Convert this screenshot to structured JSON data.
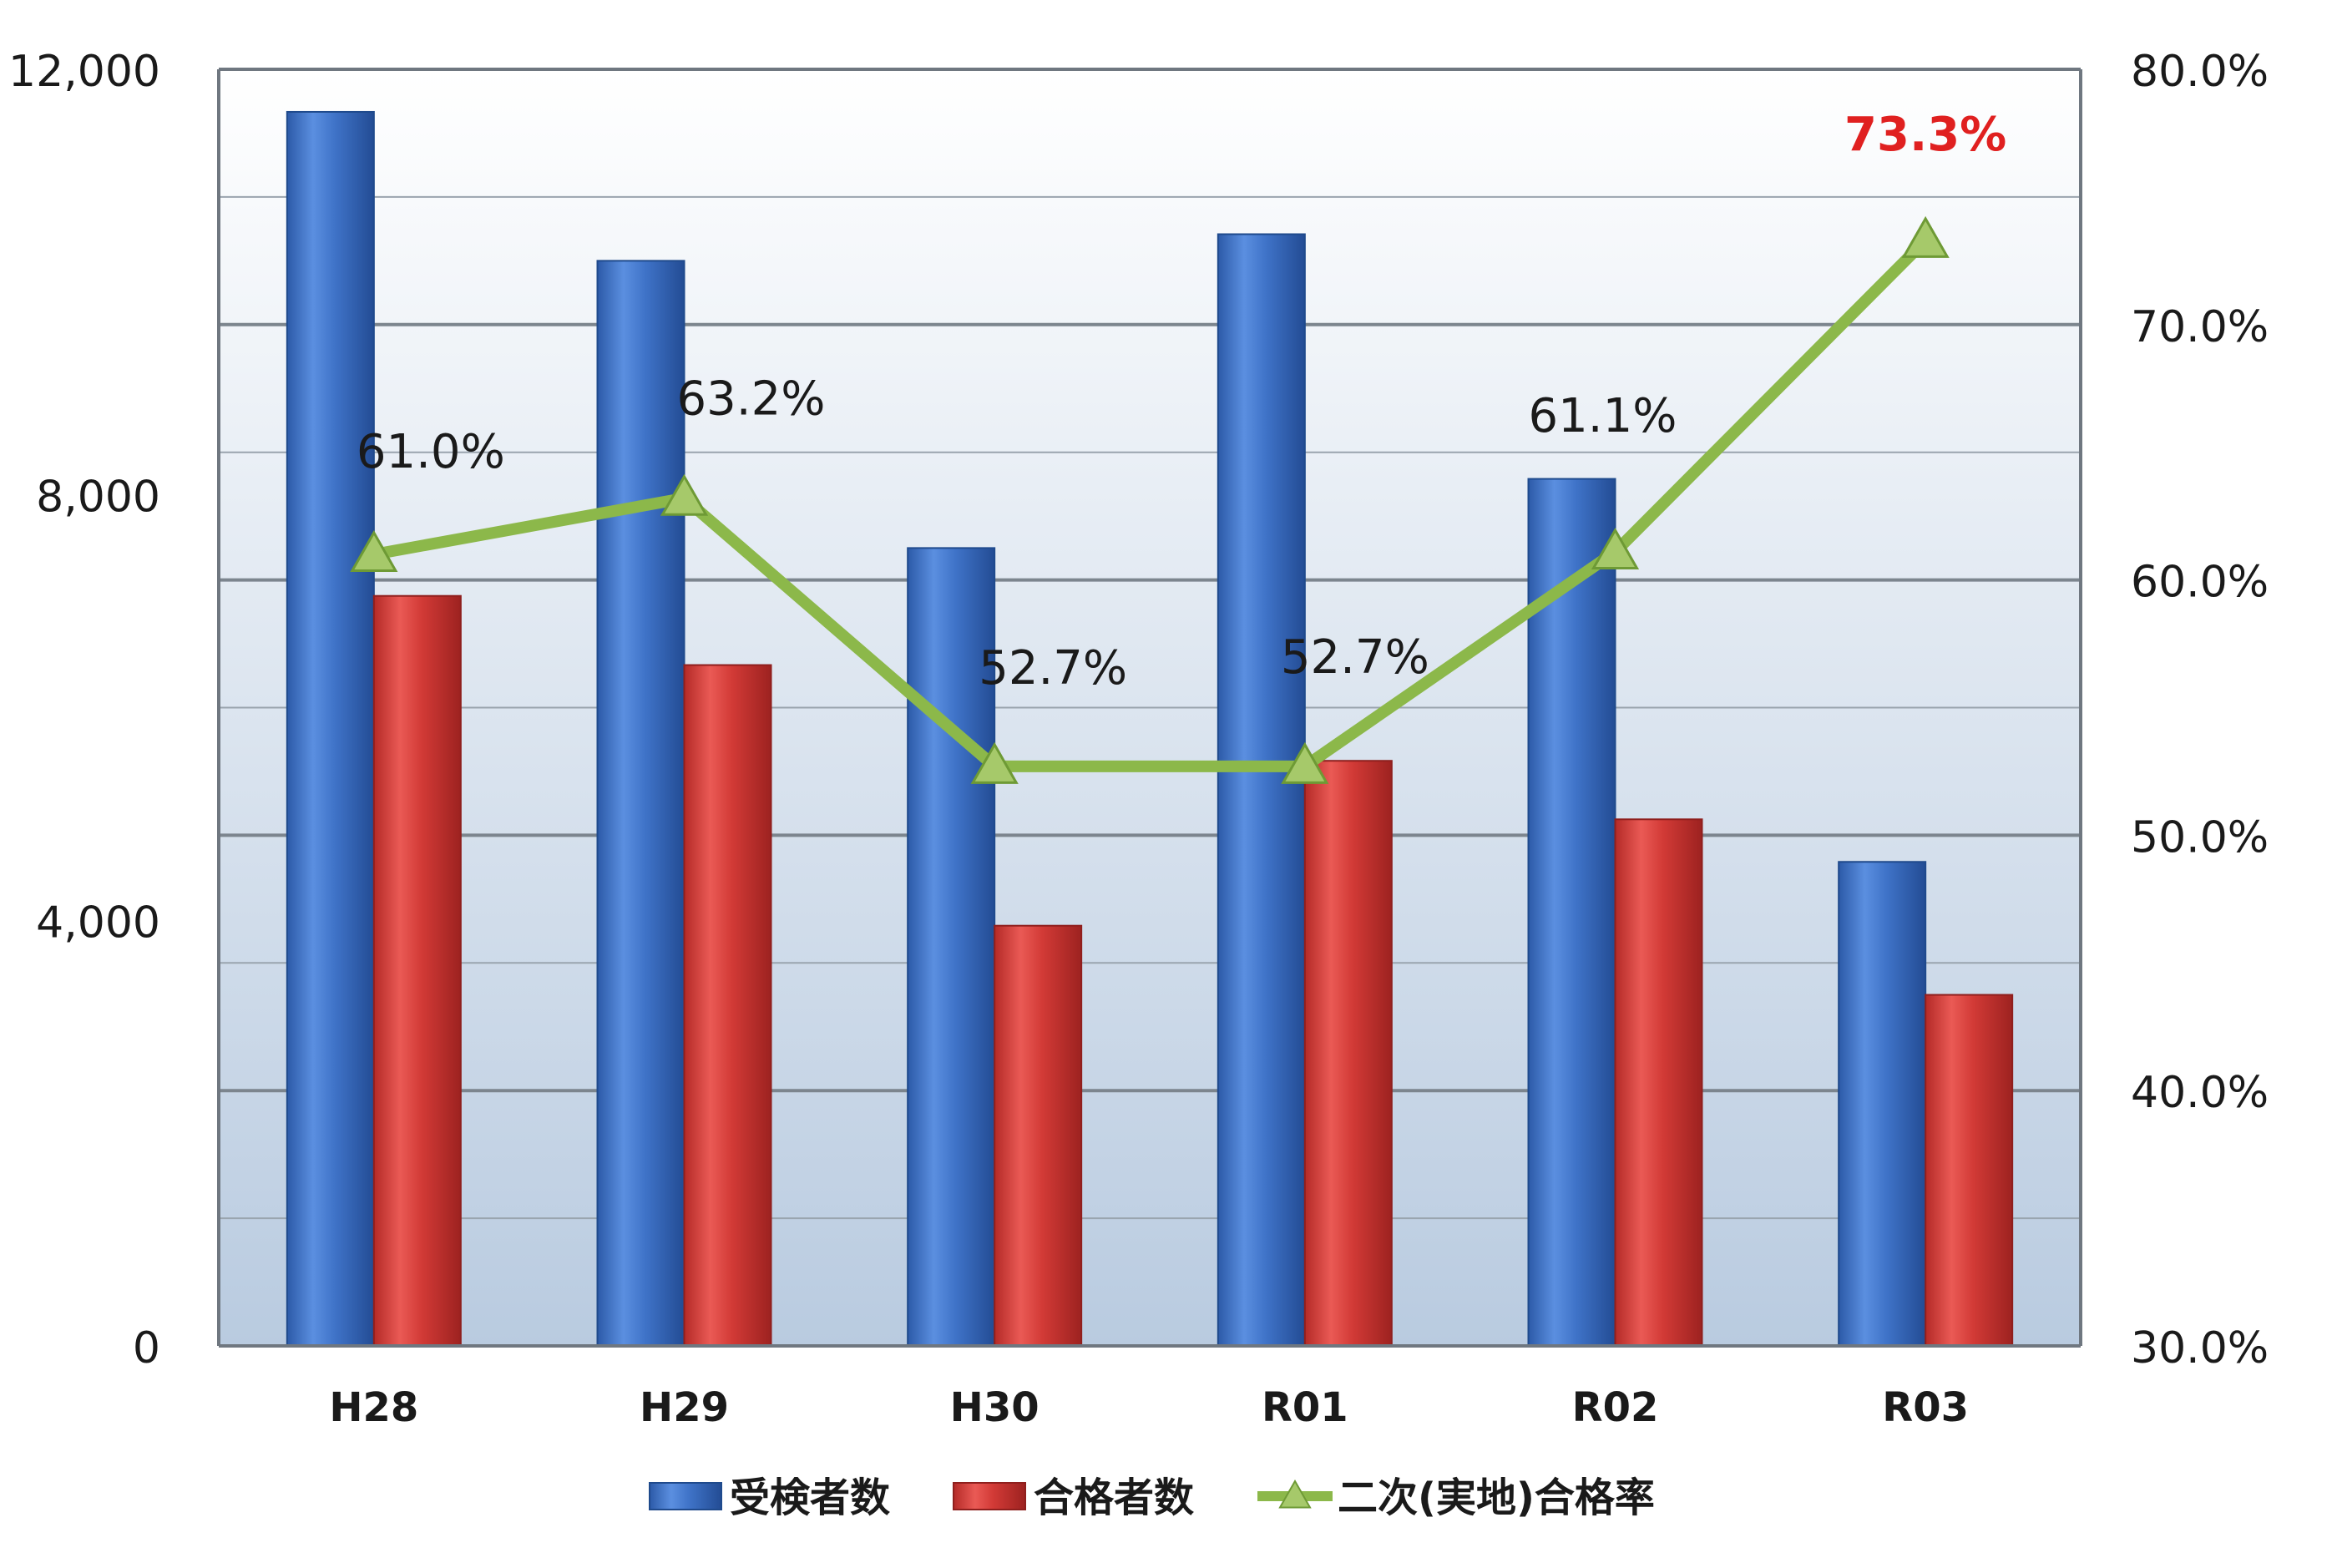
{
  "chart_data": {
    "type": "bar",
    "categories": [
      "H28",
      "H29",
      "H30",
      "R01",
      "R02",
      "R03"
    ],
    "series": [
      {
        "name": "受検者数",
        "kind": "bar",
        "axis": "left",
        "color": "#3a6fc4",
        "values": [
          11600,
          10200,
          7500,
          10450,
          8150,
          4550
        ]
      },
      {
        "name": "合格者数",
        "kind": "bar",
        "axis": "left",
        "color": "#d23a36",
        "values": [
          7050,
          6400,
          3950,
          5500,
          4950,
          3300
        ]
      },
      {
        "name": "二次(実地)合格率",
        "kind": "line",
        "axis": "right",
        "color": "#8cb84a",
        "marker": "triangle",
        "values": [
          61.0,
          63.2,
          52.7,
          52.7,
          61.1,
          73.3
        ],
        "labels": [
          "61.0%",
          "63.2%",
          "52.7%",
          "52.7%",
          "61.1%",
          "73.3%"
        ],
        "highlight_index": 5,
        "highlight_color": "#e02020"
      }
    ],
    "y_left": {
      "ylim": [
        0,
        12000
      ],
      "ticks": [
        0,
        4000,
        8000,
        12000
      ],
      "tick_labels": [
        "0",
        "4,000",
        "8,000",
        "12,000"
      ],
      "minor_grid_step": 1200
    },
    "y_right": {
      "ylim": [
        30,
        80
      ],
      "ticks": [
        30,
        40,
        50,
        60,
        70,
        80
      ],
      "tick_labels": [
        "30.0%",
        "40.0%",
        "50.0%",
        "60.0%",
        "70.0%",
        "80.0%"
      ]
    },
    "grid": true,
    "legend": "bottom",
    "title": "",
    "xlabel": "",
    "ylabel": ""
  }
}
